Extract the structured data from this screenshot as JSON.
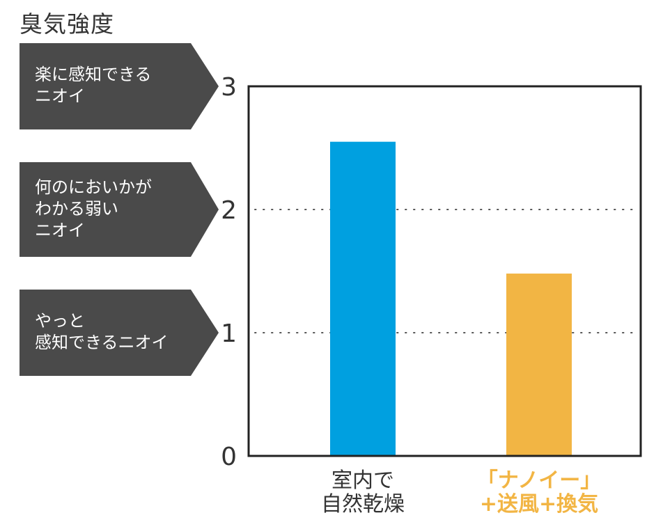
{
  "chart_data": {
    "type": "bar",
    "title": "臭気強度",
    "categories": [
      [
        "室内で",
        "自然乾燥"
      ],
      [
        "「ナノイー」",
        "+送風+換気"
      ]
    ],
    "values": [
      2.55,
      1.48
    ],
    "ylim": [
      0,
      3
    ],
    "yticks": [
      "0",
      "1",
      "2",
      "3"
    ],
    "grid": "dotted at y=1 and y=2",
    "colors": {
      "bars": [
        "#00a0e0",
        "#f2b544"
      ],
      "category_labels": [
        "#333333",
        "#f2b544"
      ],
      "callout": "#4a4a4a"
    },
    "level_callouts": [
      {
        "level": 3,
        "lines": [
          "楽に感知できる",
          "ニオイ"
        ]
      },
      {
        "level": 2,
        "lines": [
          "何のにおいかが",
          "わかる弱い",
          "ニオイ"
        ]
      },
      {
        "level": 1,
        "lines": [
          "やっと",
          "感知できるニオイ"
        ]
      }
    ]
  }
}
